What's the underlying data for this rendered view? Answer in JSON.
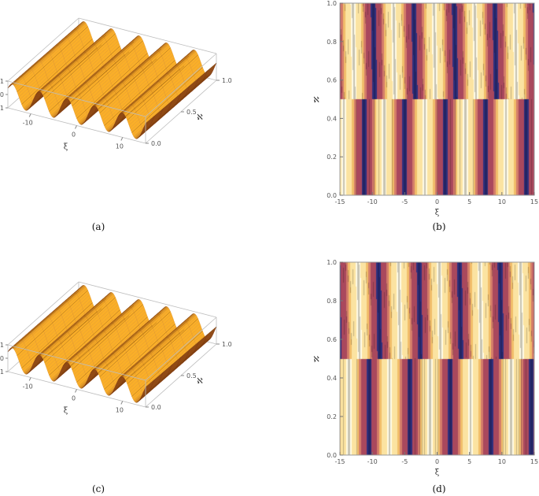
{
  "panels": [
    {
      "caption": "(a)",
      "chart_data": {
        "type": "surface",
        "axes": {
          "x": "ξ",
          "y": "ℵ",
          "z": ""
        },
        "x_ticks": [
          "-10",
          "0",
          "10"
        ],
        "y_ticks": [
          "0.0",
          "0.5",
          "1.0"
        ],
        "z_ticks": [
          "1",
          "0",
          "-1"
        ],
        "x_range": [
          -15,
          15
        ],
        "y_range": [
          0,
          1
        ],
        "z_range": [
          -1,
          1
        ],
        "crests": 5
      }
    },
    {
      "caption": "(b)",
      "chart_data": {
        "type": "heatmap",
        "subtype": "contour",
        "xlabel": "ξ",
        "ylabel": "ℵ",
        "xlim": [
          -15,
          15
        ],
        "ylim": [
          0,
          1
        ],
        "x_ticks": [
          "-15",
          "-10",
          "-5",
          "0",
          "5",
          "10",
          "15"
        ],
        "y_ticks": [
          "0.0",
          "0.2",
          "0.4",
          "0.6",
          "0.8",
          "1.0"
        ],
        "wavelength": 6.283,
        "phase_lower": 1.9,
        "phase_upper": 0.25,
        "boundary": 0.5,
        "band_colors": [
          "#2e2f7e",
          "#a9485d",
          "#d47d69",
          "#f1bd6a",
          "#fbe3a1",
          "#fffbe6"
        ]
      }
    },
    {
      "caption": "(c)",
      "chart_data": {
        "type": "surface",
        "axes": {
          "x": "ξ",
          "y": "ℵ",
          "z": ""
        },
        "x_ticks": [
          "-10",
          "0",
          "10"
        ],
        "y_ticks": [
          "0.0",
          "0.5",
          "1.0"
        ],
        "z_ticks": [
          "1",
          "0",
          "-1"
        ],
        "x_range": [
          -15,
          15
        ],
        "y_range": [
          0,
          1
        ],
        "z_range": [
          -1,
          1
        ],
        "crests": 5
      }
    },
    {
      "caption": "(d)",
      "chart_data": {
        "type": "heatmap",
        "subtype": "contour",
        "xlabel": "ξ",
        "ylabel": "ℵ",
        "xlim": [
          -15,
          15
        ],
        "ylim": [
          0,
          1
        ],
        "x_ticks": [
          "-15",
          "-10",
          "-5",
          "0",
          "5",
          "10",
          "15"
        ],
        "y_ticks": [
          "0.0",
          "0.2",
          "0.4",
          "0.6",
          "0.8",
          "1.0"
        ],
        "wavelength": 6.283,
        "phase_lower": 1.1,
        "phase_upper": -0.55,
        "boundary": 0.5,
        "band_colors": [
          "#2e2f7e",
          "#a9485d",
          "#d47d69",
          "#f1bd6a",
          "#fbe3a1",
          "#fffbe6"
        ]
      }
    }
  ]
}
